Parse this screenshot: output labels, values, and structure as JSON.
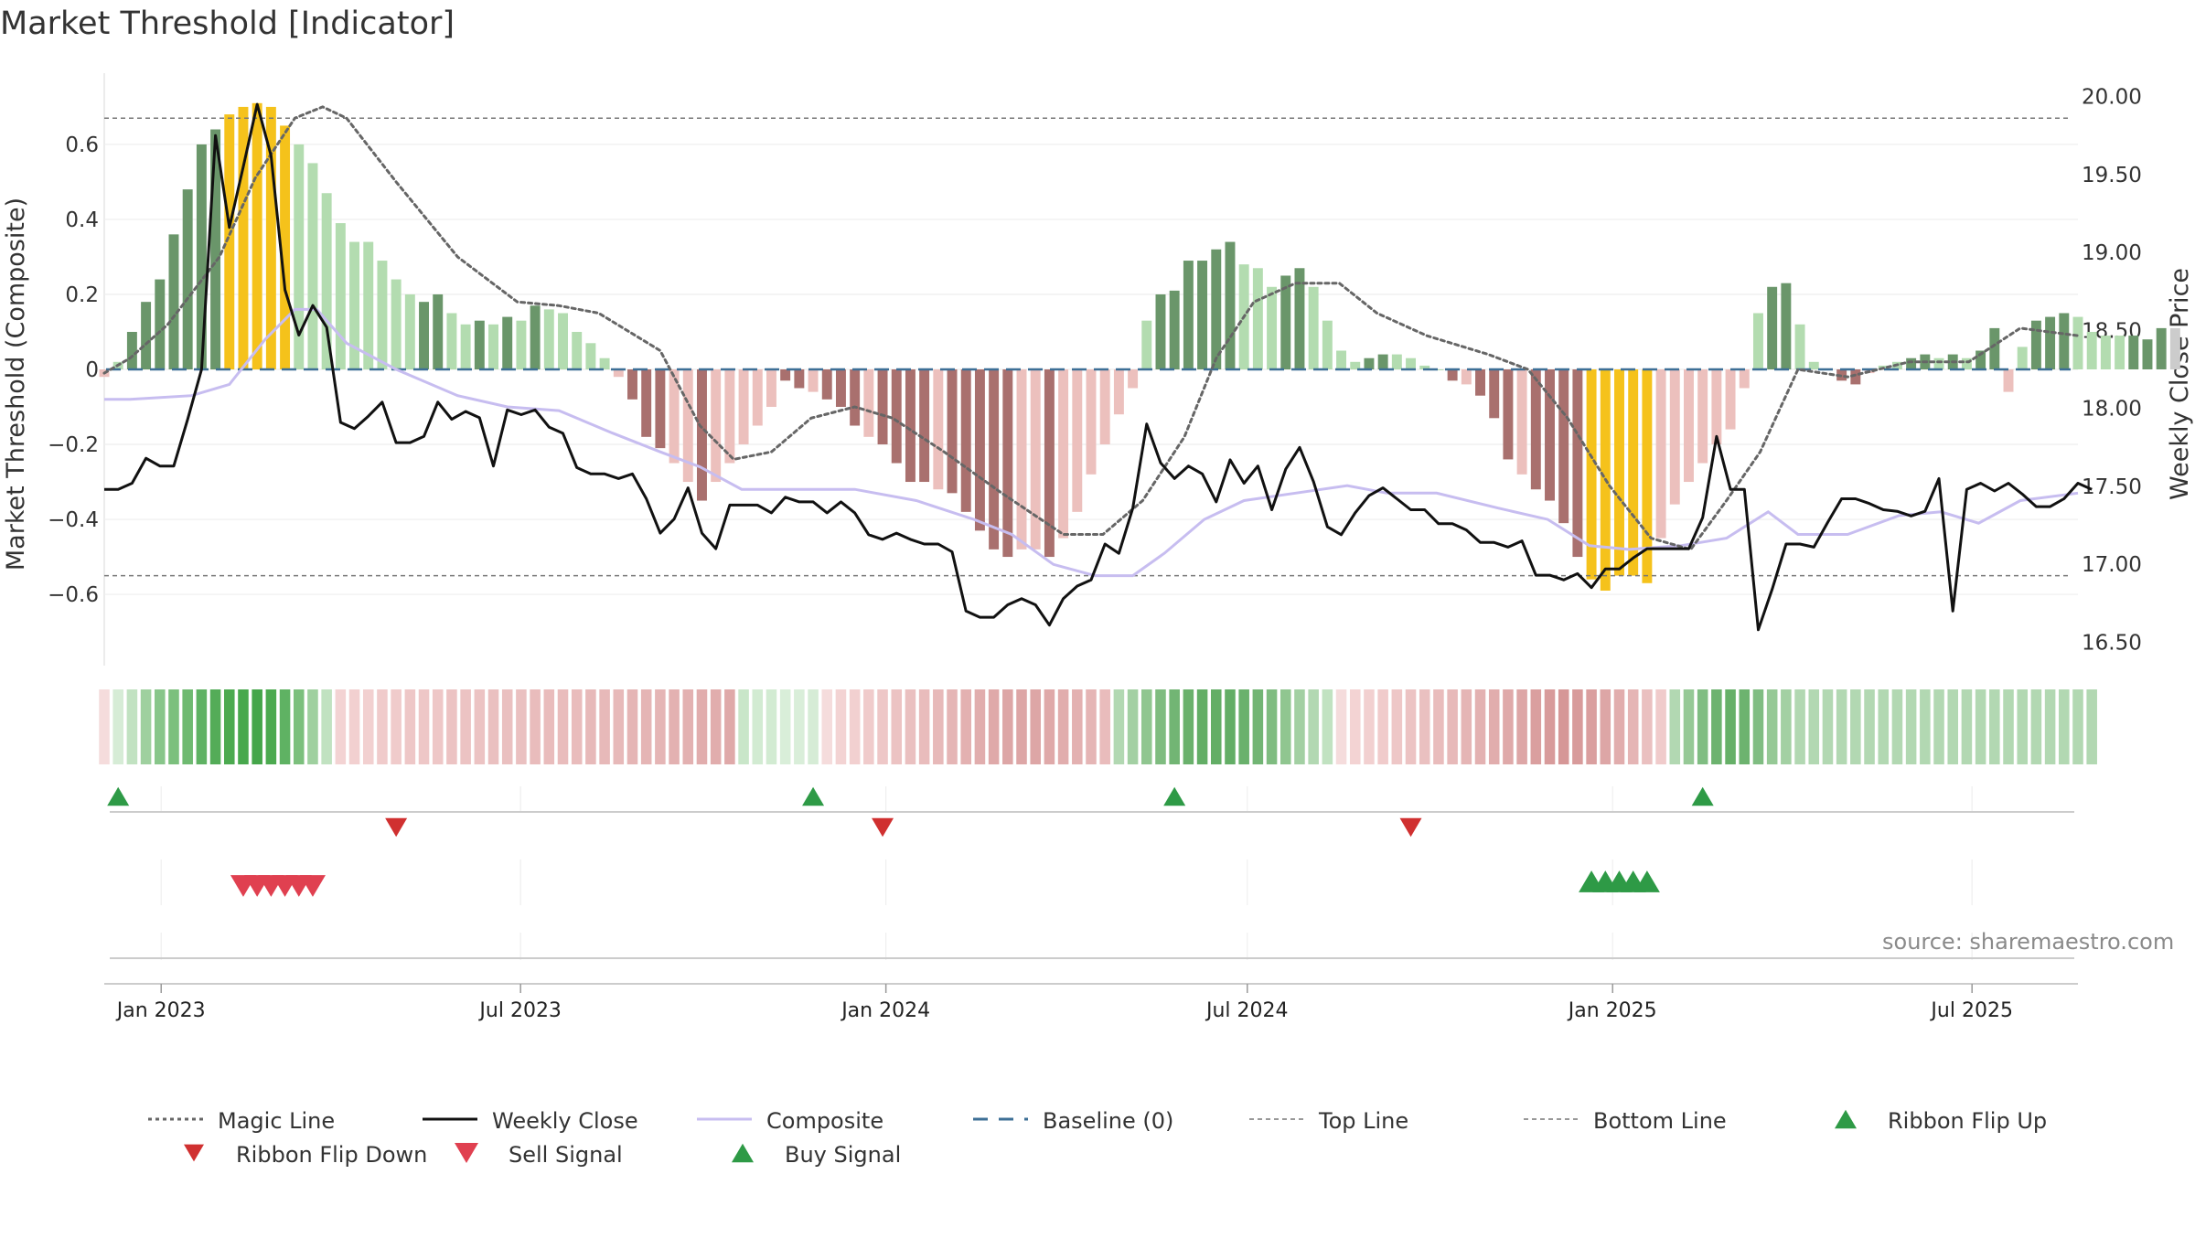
{
  "title": "Market Threshold [Indicator]",
  "source": "source: sharemaestro.com",
  "colors": {
    "magic": "#666666",
    "close": "#111111",
    "composite": "#c7bdf0",
    "baseline": "#3d6f96",
    "topBottom": "#777777",
    "barDarkGreen": "#6a966a",
    "barLightGreen": "#b3dcb0",
    "barYellow": "#f5c21b",
    "barDarkRed": "#a9706e",
    "barLightRed": "#ecc0bd",
    "flipUp": "#2e9a46",
    "flipDown": "#d03030",
    "sell": "#e04050",
    "buy": "#2e9a46"
  },
  "chart_data": {
    "type": "bar+line",
    "left_axis": {
      "label": "Market Threshold (Composite)",
      "ylim": [
        -0.79,
        0.79
      ],
      "ticks": [
        0.6,
        0.4,
        0.2,
        0,
        -0.2,
        -0.4,
        -0.6
      ],
      "tick_labels": [
        "0.6",
        "0.4",
        "0.2",
        "0",
        "−0.2",
        "−0.4",
        "−0.6"
      ]
    },
    "right_axis": {
      "label": "Weekly Close Price",
      "ylim": [
        16.35,
        20.15
      ],
      "ticks": [
        20.0,
        19.5,
        19.0,
        18.5,
        18.0,
        17.5,
        17.0,
        16.5
      ],
      "tick_labels": [
        "20.00",
        "19.50",
        "19.00",
        "18.50",
        "18.00",
        "17.50",
        "17.00",
        "16.50"
      ]
    },
    "x_axis": {
      "start": "2022-12-19",
      "end": "2025-09-08",
      "ticks": [
        "2023-01-01",
        "2023-07-01",
        "2024-01-01",
        "2024-07-01",
        "2025-01-01",
        "2025-07-01"
      ],
      "tick_labels": [
        "Jan 2023",
        "Jul 2023",
        "Jan 2024",
        "Jul 2024",
        "Jan 2025",
        "Jul 2025"
      ]
    },
    "top_line": 0.67,
    "bottom_line": -0.55,
    "baseline": 0,
    "bars": {
      "start": "2022-12-19",
      "interval_days": 7,
      "values": [
        -0.02,
        0.02,
        0.1,
        0.18,
        0.24,
        0.36,
        0.48,
        0.6,
        0.64,
        0.68,
        0.7,
        0.71,
        0.7,
        0.65,
        0.6,
        0.55,
        0.47,
        0.39,
        0.34,
        0.34,
        0.29,
        0.24,
        0.2,
        0.18,
        0.2,
        0.15,
        0.12,
        0.13,
        0.12,
        0.14,
        0.13,
        0.17,
        0.16,
        0.15,
        0.1,
        0.07,
        0.03,
        -0.02,
        -0.08,
        -0.18,
        -0.21,
        -0.25,
        -0.3,
        -0.35,
        -0.3,
        -0.25,
        -0.2,
        -0.15,
        -0.1,
        -0.03,
        -0.05,
        -0.06,
        -0.08,
        -0.1,
        -0.15,
        -0.18,
        -0.2,
        -0.25,
        -0.3,
        -0.3,
        -0.32,
        -0.33,
        -0.38,
        -0.43,
        -0.48,
        -0.5,
        -0.48,
        -0.48,
        -0.5,
        -0.45,
        -0.38,
        -0.28,
        -0.2,
        -0.12,
        -0.05,
        0.13,
        0.2,
        0.21,
        0.29,
        0.29,
        0.32,
        0.34,
        0.28,
        0.27,
        0.22,
        0.25,
        0.27,
        0.22,
        0.13,
        0.05,
        0.02,
        0.03,
        0.04,
        0.04,
        0.03,
        0.01,
        0.0,
        -0.03,
        -0.04,
        -0.07,
        -0.13,
        -0.24,
        -0.28,
        -0.32,
        -0.35,
        -0.41,
        -0.5,
        -0.56,
        -0.59,
        -0.55,
        -0.55,
        -0.57,
        -0.45,
        -0.36,
        -0.3,
        -0.25,
        -0.2,
        -0.16,
        -0.05,
        0.15,
        0.22,
        0.23,
        0.12,
        0.02,
        0.0,
        -0.03,
        -0.04,
        -0.01,
        0.01,
        0.02,
        0.03,
        0.04,
        0.03,
        0.04,
        0.03,
        0.05,
        0.11,
        -0.06,
        0.06,
        0.13,
        0.14,
        0.15,
        0.14,
        0.1,
        0.09,
        0.09,
        0.09,
        0.08,
        0.11,
        0.11
      ],
      "colors": [
        "LR",
        "LG",
        "DG",
        "DG",
        "DG",
        "DG",
        "DG",
        "DG",
        "DG",
        "Y",
        "Y",
        "Y",
        "Y",
        "Y",
        "LG",
        "LG",
        "LG",
        "LG",
        "LG",
        "LG",
        "LG",
        "LG",
        "LG",
        "DG",
        "DG",
        "LG",
        "LG",
        "DG",
        "LG",
        "DG",
        "LG",
        "DG",
        "LG",
        "LG",
        "LG",
        "LG",
        "LG",
        "LR",
        "DR",
        "DR",
        "DR",
        "LR",
        "LR",
        "DR",
        "LR",
        "LR",
        "LR",
        "LR",
        "LR",
        "DR",
        "DR",
        "LR",
        "DR",
        "DR",
        "DR",
        "LR",
        "DR",
        "DR",
        "DR",
        "DR",
        "LR",
        "DR",
        "DR",
        "DR",
        "DR",
        "DR",
        "LR",
        "LR",
        "DR",
        "LR",
        "LR",
        "LR",
        "LR",
        "LR",
        "LR",
        "LG",
        "DG",
        "DG",
        "DG",
        "DG",
        "DG",
        "DG",
        "LG",
        "LG",
        "LG",
        "DG",
        "DG",
        "LG",
        "LG",
        "LG",
        "LG",
        "DG",
        "DG",
        "LG",
        "LG",
        "LG",
        "LG",
        "DR",
        "LR",
        "DR",
        "DR",
        "DR",
        "LR",
        "DR",
        "DR",
        "DR",
        "DR",
        "Y",
        "Y",
        "Y",
        "Y",
        "Y",
        "LR",
        "LR",
        "LR",
        "LR",
        "LR",
        "LR",
        "LR",
        "LG",
        "DG",
        "DG",
        "LG",
        "LG",
        "LG",
        "DR",
        "DR",
        "LR",
        "LG",
        "LG",
        "DG",
        "DG",
        "LG",
        "DG",
        "LG",
        "DG",
        "DG",
        "LR",
        "LG",
        "DG",
        "DG",
        "DG",
        "LG",
        "LG",
        "LG",
        "LG",
        "DG",
        "DG",
        "DG"
      ]
    },
    "magic_line": {
      "x": [
        "2022-12-19",
        "2023-01-01",
        "2023-01-20",
        "2023-02-15",
        "2023-03-05",
        "2023-03-25",
        "2023-04-08",
        "2023-04-20",
        "2023-05-15",
        "2023-06-15",
        "2023-07-15",
        "2023-08-05",
        "2023-08-25",
        "2023-09-25",
        "2023-10-15",
        "2023-11-01",
        "2023-11-20",
        "2023-12-10",
        "2024-01-01",
        "2024-01-20",
        "2024-02-15",
        "2024-03-15",
        "2024-04-15",
        "2024-05-05",
        "2024-05-25",
        "2024-06-15",
        "2024-07-01",
        "2024-07-20",
        "2024-08-10",
        "2024-09-01",
        "2024-09-20",
        "2024-10-15",
        "2024-11-15",
        "2024-12-05",
        "2024-12-25",
        "2025-01-15",
        "2025-02-05",
        "2025-02-25",
        "2025-03-15",
        "2025-04-01",
        "2025-04-20",
        "2025-05-15",
        "2025-06-15",
        "2025-07-15",
        "2025-08-10",
        "2025-09-08"
      ],
      "y": [
        -0.01,
        0.03,
        0.12,
        0.3,
        0.51,
        0.67,
        0.7,
        0.67,
        0.5,
        0.3,
        0.18,
        0.17,
        0.15,
        0.05,
        -0.15,
        -0.24,
        -0.22,
        -0.13,
        -0.1,
        -0.13,
        -0.22,
        -0.33,
        -0.44,
        -0.44,
        -0.35,
        -0.18,
        0.03,
        0.18,
        0.23,
        0.23,
        0.15,
        0.09,
        0.04,
        0.0,
        -0.13,
        -0.31,
        -0.45,
        -0.48,
        -0.35,
        -0.22,
        0.0,
        -0.02,
        0.02,
        0.02,
        0.11,
        0.09
      ]
    },
    "composite_line": {
      "x": [
        "2022-12-19",
        "2023-01-01",
        "2023-02-01",
        "2023-02-20",
        "2023-03-10",
        "2023-03-25",
        "2023-04-05",
        "2023-04-20",
        "2023-05-15",
        "2023-06-15",
        "2023-07-10",
        "2023-08-05",
        "2023-09-01",
        "2023-09-25",
        "2023-10-15",
        "2023-11-05",
        "2023-12-01",
        "2024-01-01",
        "2024-02-01",
        "2024-03-01",
        "2024-03-20",
        "2024-04-10",
        "2024-05-01",
        "2024-05-20",
        "2024-06-05",
        "2024-06-25",
        "2024-07-15",
        "2024-08-10",
        "2024-09-05",
        "2024-09-25",
        "2024-10-20",
        "2024-11-20",
        "2024-12-15",
        "2025-01-05",
        "2025-01-25",
        "2025-02-20",
        "2025-03-15",
        "2025-04-05",
        "2025-04-20",
        "2025-05-15",
        "2025-06-10",
        "2025-07-01",
        "2025-07-20",
        "2025-08-10",
        "2025-09-08"
      ],
      "y": [
        -0.08,
        -0.08,
        -0.07,
        -0.04,
        0.08,
        0.16,
        0.16,
        0.07,
        0.0,
        -0.07,
        -0.1,
        -0.11,
        -0.17,
        -0.22,
        -0.26,
        -0.32,
        -0.32,
        -0.32,
        -0.35,
        -0.4,
        -0.44,
        -0.52,
        -0.55,
        -0.55,
        -0.49,
        -0.4,
        -0.35,
        -0.33,
        -0.31,
        -0.33,
        -0.33,
        -0.37,
        -0.4,
        -0.47,
        -0.48,
        -0.47,
        -0.45,
        -0.38,
        -0.44,
        -0.44,
        -0.39,
        -0.38,
        -0.41,
        -0.35,
        -0.33
      ]
    },
    "weekly_close": {
      "start": "2022-12-19",
      "interval_days": 7,
      "values": [
        17.48,
        17.48,
        17.52,
        17.68,
        17.63,
        17.63,
        17.93,
        18.25,
        19.75,
        19.16,
        19.55,
        19.95,
        19.62,
        18.76,
        18.47,
        18.66,
        18.52,
        17.91,
        17.87,
        17.95,
        18.04,
        17.78,
        17.78,
        17.82,
        18.04,
        17.93,
        17.98,
        17.94,
        17.63,
        17.99,
        17.96,
        17.99,
        17.88,
        17.84,
        17.62,
        17.58,
        17.58,
        17.55,
        17.58,
        17.42,
        17.2,
        17.29,
        17.49,
        17.2,
        17.1,
        17.38,
        17.38,
        17.38,
        17.33,
        17.43,
        17.4,
        17.4,
        17.33,
        17.4,
        17.33,
        17.19,
        17.16,
        17.2,
        17.16,
        17.13,
        17.13,
        17.08,
        16.7,
        16.66,
        16.66,
        16.74,
        16.78,
        16.74,
        16.61,
        16.78,
        16.86,
        16.9,
        17.13,
        17.07,
        17.36,
        17.9,
        17.65,
        17.55,
        17.63,
        17.58,
        17.4,
        17.67,
        17.52,
        17.63,
        17.35,
        17.61,
        17.75,
        17.53,
        17.24,
        17.19,
        17.33,
        17.44,
        17.49,
        17.42,
        17.35,
        17.35,
        17.26,
        17.26,
        17.22,
        17.14,
        17.14,
        17.11,
        17.15,
        16.93,
        16.93,
        16.9,
        16.94,
        16.85,
        16.97,
        16.97,
        17.04,
        17.1,
        17.1,
        17.1,
        17.1,
        17.3,
        17.82,
        17.48,
        17.48,
        16.58,
        16.84,
        17.13,
        17.13,
        17.11,
        17.27,
        17.42,
        17.42,
        17.39,
        17.35,
        17.34,
        17.31,
        17.34,
        17.55,
        16.7,
        17.48,
        17.52,
        17.47,
        17.52,
        17.45,
        17.37,
        17.37,
        17.42,
        17.52,
        17.48
      ]
    },
    "ribbon": {
      "start": "2022-12-19",
      "interval_days": 7,
      "colors": [
        "#f5dcdc",
        "#d6ecd6",
        "#c1e2c1",
        "#9fd09f",
        "#88c68a",
        "#7cc07d",
        "#6fba71",
        "#5fb263",
        "#54ac58",
        "#4caa50",
        "#48a84d",
        "#45a64a",
        "#4caa50",
        "#5fb263",
        "#7cc07d",
        "#9fd09f",
        "#c1e2c1",
        "#f3d3d3",
        "#f2d0d0",
        "#f2d0d0",
        "#f0cbcb",
        "#f0cbcb",
        "#eec7c7",
        "#eec7c7",
        "#eec7c7",
        "#ecc3c3",
        "#ecc3c3",
        "#ecc3c3",
        "#eac0c0",
        "#eac0c0",
        "#eac0c0",
        "#e9bcbc",
        "#e9bcbc",
        "#e9bcbc",
        "#e9bcbc",
        "#e7b9b9",
        "#e7b9b9",
        "#e7b9b9",
        "#e5b5b5",
        "#e5b5b5",
        "#e5b5b5",
        "#e3b1b1",
        "#e3b1b1",
        "#e1adad",
        "#e1adad",
        "#dfa9a9",
        "#c9e6c9",
        "#d2ebd2",
        "#d2ebd2",
        "#d9eed9",
        "#d9eed9",
        "#d6ecd6",
        "#f5dcdc",
        "#f3d3d3",
        "#f2d0d0",
        "#f0cbcb",
        "#eec7c7",
        "#ecc3c3",
        "#eac0c0",
        "#e9bcbc",
        "#e7b9b9",
        "#e5b5b5",
        "#e3b1b1",
        "#e1adad",
        "#dfa9a9",
        "#dda6a6",
        "#dda6a6",
        "#dda6a6",
        "#dfa9a9",
        "#e1adad",
        "#e3b1b1",
        "#e5b5b5",
        "#e9bcbc",
        "#b2d8b2",
        "#a3d0a3",
        "#90c690",
        "#7fbc80",
        "#72b574",
        "#6ab16c",
        "#63ae66",
        "#63ae66",
        "#63ae66",
        "#6ab16c",
        "#72b574",
        "#7fbc80",
        "#90c690",
        "#a3d0a3",
        "#b2d8b2",
        "#c1e2c1",
        "#f5dcdc",
        "#f3d3d3",
        "#f2d0d0",
        "#f0cbcb",
        "#eec7c7",
        "#ecc3c3",
        "#eac0c0",
        "#e9bcbc",
        "#e7b9b9",
        "#e5b5b5",
        "#e3b1b1",
        "#e1adad",
        "#dfa9a9",
        "#dda6a6",
        "#da9f9f",
        "#d89b9b",
        "#d69797",
        "#d89b9b",
        "#da9f9f",
        "#dda6a6",
        "#e1adad",
        "#e5b5b5",
        "#eac0c0",
        "#f0cbcb",
        "#b2d8b2",
        "#96c996",
        "#80bd82",
        "#6db36f",
        "#66b068",
        "#6db36f",
        "#80bd82",
        "#96c996",
        "#a3d0a3",
        "#b2d8b2",
        "#b2d8b2",
        "#b2d8b2",
        "#b2d8b2",
        "#b2d8b2",
        "#b2d8b2",
        "#b2d8b2",
        "#b2d8b2",
        "#b2d8b2",
        "#b2d8b2",
        "#b2d8b2",
        "#b2d8b2",
        "#b2d8b2",
        "#b2d8b2",
        "#b2d8b2",
        "#b2d8b2",
        "#b2d8b2",
        "#b2d8b2",
        "#b2d8b2",
        "#b2d8b2",
        "#b2d8b2",
        "#b2d8b2"
      ]
    },
    "ribbon_flip_up": [
      "2022-12-26",
      "2023-12-11",
      "2024-06-10",
      "2025-03-03"
    ],
    "ribbon_flip_down": [
      "2023-05-15",
      "2024-01-15",
      "2024-10-07"
    ],
    "sell_signals": [
      "2023-02-27",
      "2023-03-06",
      "2023-03-13",
      "2023-03-20",
      "2023-03-27",
      "2023-04-03"
    ],
    "buy_signals": [
      "2025-01-06",
      "2025-01-13",
      "2025-01-20",
      "2025-01-27",
      "2025-02-03"
    ]
  },
  "legend": [
    {
      "label": "Magic Line",
      "marker": "dotted-line"
    },
    {
      "label": "Weekly Close",
      "marker": "solid-line"
    },
    {
      "label": "Composite",
      "marker": "lavender-line"
    },
    {
      "label": "Baseline (0)",
      "marker": "dashed-line"
    },
    {
      "label": "Top Line",
      "marker": "thin-dashed-line"
    },
    {
      "label": "Bottom Line",
      "marker": "thin-dashed-line"
    },
    {
      "label": "Ribbon Flip Up",
      "marker": "up-triangle-green"
    },
    {
      "label": "Ribbon Flip Down",
      "marker": "down-triangle-red"
    },
    {
      "label": "Sell Signal",
      "marker": "down-triangle-pink"
    },
    {
      "label": "Buy Signal",
      "marker": "up-triangle-green"
    }
  ]
}
